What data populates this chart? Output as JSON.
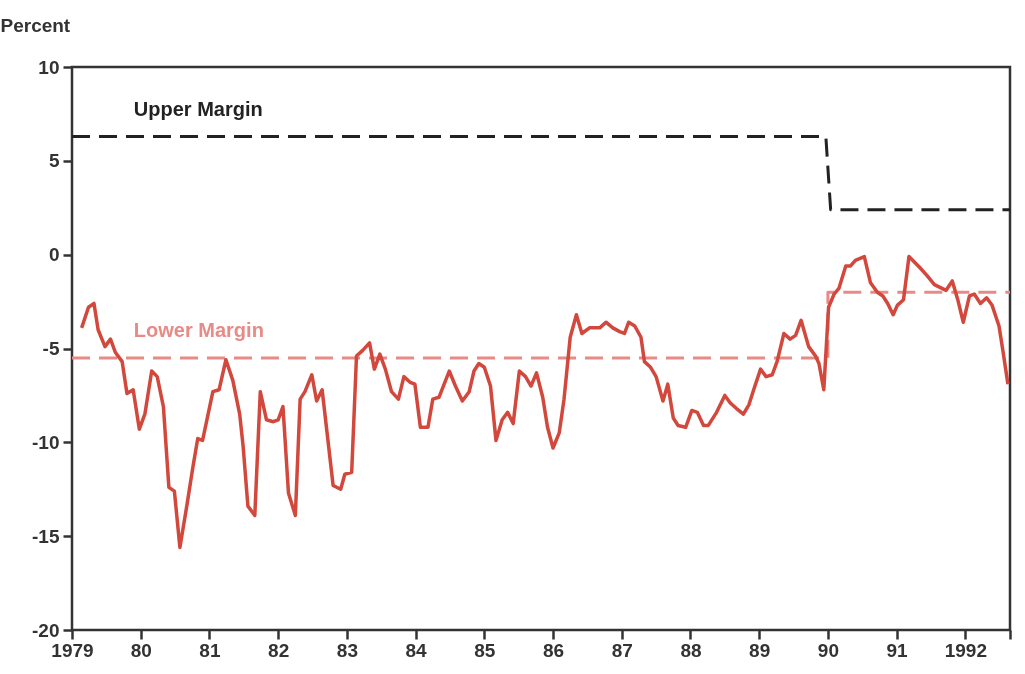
{
  "chart_data": {
    "type": "line",
    "ylabel": "Percent",
    "xlim": [
      1979,
      1992.65
    ],
    "xticks": [
      1979,
      {
        "value": 1980,
        "label": "80"
      },
      {
        "value": 1981,
        "label": "81"
      },
      {
        "value": 1982,
        "label": "82"
      },
      {
        "value": 1983,
        "label": "83"
      },
      {
        "value": 1984,
        "label": "84"
      },
      {
        "value": 1985,
        "label": "85"
      },
      {
        "value": 1986,
        "label": "86"
      },
      {
        "value": 1987,
        "label": "87"
      },
      {
        "value": 1988,
        "label": "88"
      },
      {
        "value": 1989,
        "label": "89"
      },
      {
        "value": 1990,
        "label": "90"
      },
      {
        "value": 1991,
        "label": "91"
      },
      1992,
      {
        "value": 1992.65,
        "label": null
      }
    ],
    "ylim": [
      -20,
      10
    ],
    "yticks": [
      -20,
      -15,
      -10,
      -5,
      0,
      5,
      10
    ],
    "grid": false,
    "marker": "none",
    "series": [
      {
        "color": "#d2483c",
        "line_style": "solid",
        "x": [
          1979.14,
          1979.24,
          1979.32,
          1979.38,
          1979.48,
          1979.56,
          1979.63,
          1979.73,
          1979.8,
          1979.89,
          1979.98,
          1980.06,
          1980.16,
          1980.24,
          1980.33,
          1980.41,
          1980.49,
          1980.57,
          1980.67,
          1980.76,
          1980.83,
          1980.9,
          1981.05,
          1981.14,
          1981.24,
          1981.34,
          1981.44,
          1981.49,
          1981.56,
          1981.66,
          1981.74,
          1981.83,
          1981.93,
          1982.0,
          1982.07,
          1982.15,
          1982.25,
          1982.32,
          1982.39,
          1982.49,
          1982.56,
          1982.64,
          1982.8,
          1982.91,
          1982.97,
          1983.07,
          1983.14,
          1983.23,
          1983.33,
          1983.4,
          1983.48,
          1983.56,
          1983.65,
          1983.75,
          1983.83,
          1983.92,
          1983.99,
          1984.07,
          1984.18,
          1984.25,
          1984.34,
          1984.49,
          1984.58,
          1984.68,
          1984.78,
          1984.85,
          1984.92,
          1985.0,
          1985.09,
          1985.17,
          1985.26,
          1985.34,
          1985.42,
          1985.51,
          1985.6,
          1985.68,
          1985.76,
          1985.85,
          1985.92,
          1986.0,
          1986.09,
          1986.16,
          1986.25,
          1986.34,
          1986.42,
          1986.53,
          1986.68,
          1986.77,
          1986.87,
          1986.97,
          1987.04,
          1987.1,
          1987.19,
          1987.28,
          1987.33,
          1987.42,
          1987.5,
          1987.6,
          1987.67,
          1987.75,
          1987.82,
          1987.93,
          1988.02,
          1988.1,
          1988.19,
          1988.26,
          1988.38,
          1988.5,
          1988.58,
          1988.67,
          1988.77,
          1988.85,
          1988.92,
          1989.02,
          1989.1,
          1989.19,
          1989.26,
          1989.36,
          1989.45,
          1989.53,
          1989.61,
          1989.72,
          1989.82,
          1989.87,
          1989.94,
          1990.01,
          1990.09,
          1990.16,
          1990.26,
          1990.33,
          1990.4,
          1990.53,
          1990.62,
          1990.72,
          1990.8,
          1990.87,
          1990.95,
          1991.01,
          1991.1,
          1991.18,
          1991.34,
          1991.44,
          1991.55,
          1991.72,
          1991.81,
          1991.89,
          1991.97,
          1992.06,
          1992.13,
          1992.22,
          1992.31,
          1992.39,
          1992.49,
          1992.55,
          1992.62
        ],
        "values": [
          -3.9,
          -2.8,
          -2.6,
          -4.0,
          -4.9,
          -4.5,
          -5.2,
          -5.7,
          -7.4,
          -7.2,
          -9.3,
          -8.5,
          -6.2,
          -6.5,
          -8.1,
          -12.4,
          -12.6,
          -15.6,
          -13.4,
          -11.3,
          -9.8,
          -9.9,
          -7.3,
          -7.2,
          -5.6,
          -6.7,
          -8.5,
          -10.2,
          -13.4,
          -13.9,
          -7.3,
          -8.8,
          -8.9,
          -8.8,
          -8.1,
          -12.7,
          -13.9,
          -7.7,
          -7.3,
          -6.4,
          -7.8,
          -7.2,
          -12.3,
          -12.5,
          -11.7,
          -11.6,
          -5.4,
          -5.1,
          -4.7,
          -6.1,
          -5.3,
          -6.1,
          -7.3,
          -7.7,
          -6.5,
          -6.8,
          -6.9,
          -9.2,
          -9.2,
          -7.7,
          -7.6,
          -6.2,
          -7.0,
          -7.8,
          -7.3,
          -6.2,
          -5.8,
          -6.0,
          -7.0,
          -9.9,
          -8.8,
          -8.4,
          -9.0,
          -6.2,
          -6.5,
          -7.0,
          -6.3,
          -7.6,
          -9.2,
          -10.3,
          -9.5,
          -7.7,
          -4.4,
          -3.2,
          -4.2,
          -3.9,
          -3.9,
          -3.6,
          -3.9,
          -4.1,
          -4.2,
          -3.6,
          -3.8,
          -4.4,
          -5.7,
          -6.0,
          -6.5,
          -7.8,
          -6.9,
          -8.7,
          -9.1,
          -9.2,
          -8.3,
          -8.4,
          -9.1,
          -9.1,
          -8.4,
          -7.5,
          -7.9,
          -8.2,
          -8.5,
          -8.0,
          -7.2,
          -6.1,
          -6.5,
          -6.4,
          -5.7,
          -4.2,
          -4.5,
          -4.3,
          -3.5,
          -4.9,
          -5.4,
          -5.8,
          -7.2,
          -2.8,
          -2.1,
          -1.8,
          -0.6,
          -0.6,
          -0.3,
          -0.1,
          -1.5,
          -2.0,
          -2.2,
          -2.6,
          -3.2,
          -2.7,
          -2.4,
          -0.1,
          -0.7,
          -1.1,
          -1.6,
          -1.9,
          -1.4,
          -2.4,
          -3.6,
          -2.2,
          -2.1,
          -2.6,
          -2.3,
          -2.7,
          -3.8,
          -5.2,
          -6.9
        ]
      },
      {
        "name": "Upper Margin",
        "color": "#222222",
        "line_style": "dashed",
        "x": [
          1979,
          1989.97,
          1990.04,
          1992.65
        ],
        "values": [
          6.3,
          6.3,
          2.4,
          2.4
        ]
      },
      {
        "name": "Lower Margin",
        "color": "#e88a85",
        "line_style": "dashed",
        "x": [
          1979,
          1990.0,
          1990.0,
          1992.65
        ],
        "values": [
          -5.5,
          -5.5,
          -2.0,
          -2.0
        ]
      }
    ]
  }
}
